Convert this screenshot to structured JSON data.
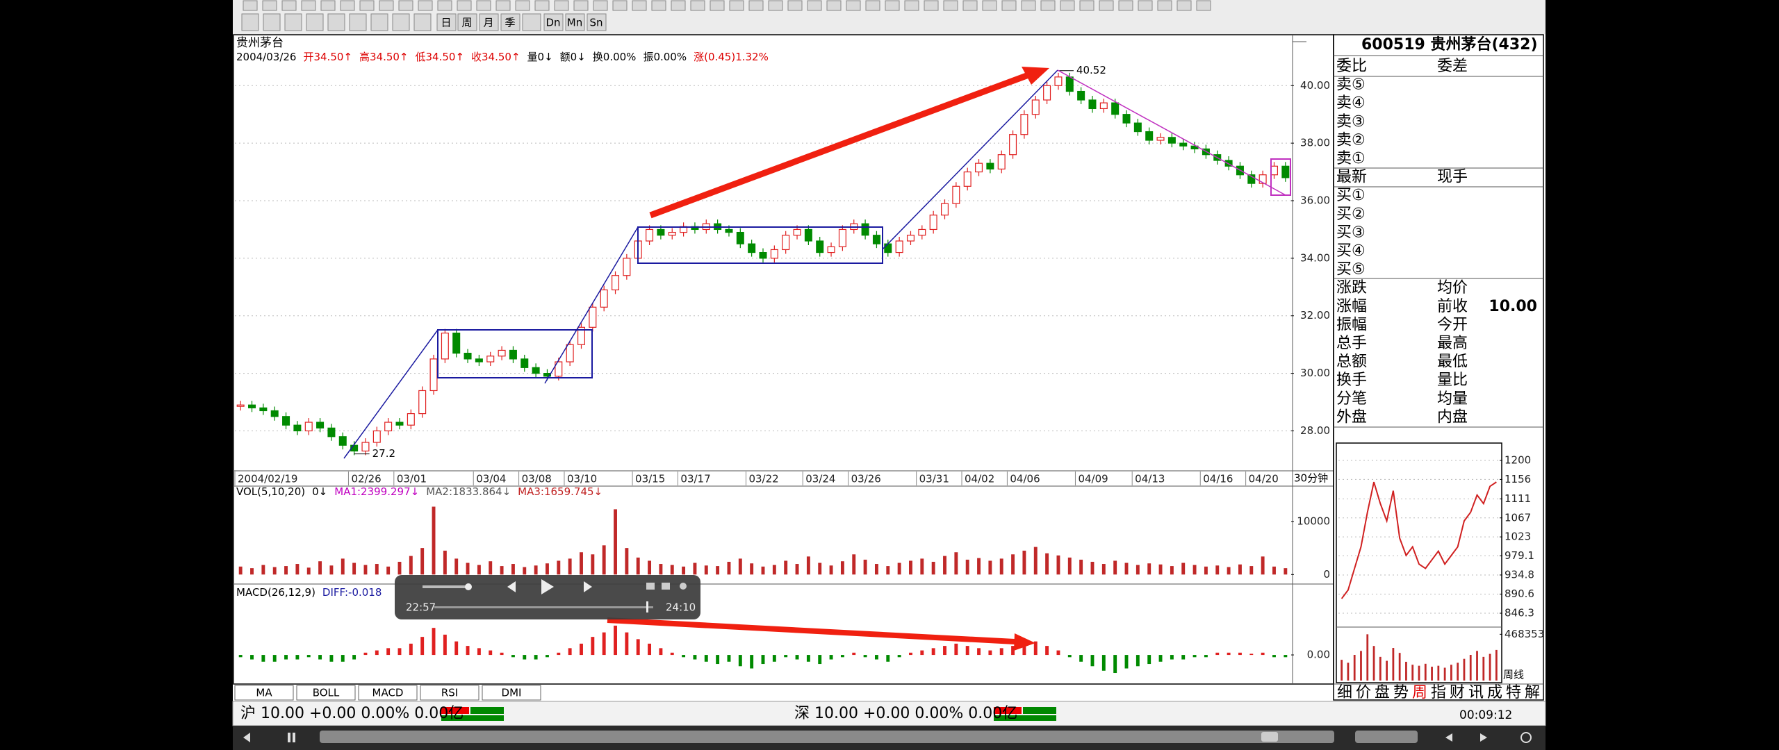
{
  "chart_data": [
    {
      "type": "candle",
      "title": "贵州茅台",
      "subtitle": "2004/03/26",
      "info": [
        "开34.50↑",
        "高34.50↑",
        "低34.50↑",
        "收34.50↑",
        "量0↓",
        "额0↓",
        "换0.00%",
        "振0.00%",
        "涨(0.45)1.32%"
      ],
      "x_unit": "30分钟",
      "categories": [
        "2004/02/19",
        null,
        null,
        null,
        null,
        null,
        null,
        null,
        null,
        null,
        "02/26",
        null,
        null,
        null,
        "03/01",
        null,
        null,
        null,
        null,
        null,
        null,
        "03/04",
        null,
        null,
        null,
        "03/08",
        null,
        null,
        null,
        "03/10",
        null,
        null,
        null,
        null,
        null,
        "03/15",
        null,
        null,
        null,
        "03/17",
        null,
        null,
        null,
        null,
        null,
        "03/22",
        null,
        null,
        null,
        null,
        "03/24",
        null,
        null,
        null,
        "03/26",
        null,
        null,
        null,
        null,
        null,
        "03/31",
        null,
        null,
        null,
        "04/02",
        null,
        null,
        null,
        "04/06",
        null,
        null,
        null,
        null,
        null,
        "04/09",
        null,
        null,
        null,
        null,
        "04/13",
        null,
        null,
        null,
        null,
        null,
        "04/16",
        null,
        null,
        null,
        "04/20",
        null,
        null,
        null
      ],
      "values": [
        28.9,
        28.8,
        28.7,
        28.5,
        28.2,
        28.0,
        28.3,
        28.1,
        27.8,
        27.5,
        27.3,
        27.6,
        28.0,
        28.3,
        28.2,
        28.6,
        29.4,
        30.5,
        31.4,
        30.7,
        30.5,
        30.4,
        30.6,
        30.8,
        30.5,
        30.2,
        30.0,
        29.9,
        30.4,
        31.0,
        31.6,
        32.3,
        32.9,
        33.4,
        34.0,
        34.6,
        35.0,
        34.8,
        34.9,
        35.1,
        35.0,
        35.2,
        35.0,
        34.9,
        34.5,
        34.2,
        34.0,
        34.3,
        34.8,
        35.0,
        34.6,
        34.2,
        34.4,
        35.0,
        35.2,
        34.8,
        34.5,
        34.2,
        34.6,
        34.8,
        35.0,
        35.5,
        35.9,
        36.5,
        37.0,
        37.3,
        37.1,
        37.6,
        38.3,
        39.0,
        39.5,
        40.0,
        40.3,
        39.8,
        39.5,
        39.2,
        39.4,
        39.0,
        38.7,
        38.4,
        38.1,
        38.2,
        38.0,
        37.9,
        37.8,
        37.6,
        37.4,
        37.2,
        36.9,
        36.6,
        36.9,
        37.2,
        36.8
      ],
      "high": 40.52,
      "low": 27.2,
      "up_color": "#e02020",
      "down_color": "#008a00",
      "ylim": [
        26.66,
        41.72
      ],
      "yticks": [
        {
          "value": 28,
          "label": "28.00"
        },
        {
          "value": 30,
          "label": "30.00"
        },
        {
          "value": 32,
          "label": "32.00"
        },
        {
          "value": 34,
          "label": "34.00"
        },
        {
          "value": 36,
          "label": "36.00"
        },
        {
          "value": 38,
          "label": "38.00"
        },
        {
          "value": 40,
          "label": "40.00"
        }
      ],
      "grid": true
    },
    {
      "type": "bar",
      "title": "VOL(5,10,20)",
      "legend": [
        "0↓",
        "MA1:2399.297↓",
        "MA2:1833.864↓",
        "MA3:1659.745↓"
      ],
      "values": [
        1500,
        1200,
        1800,
        1400,
        1600,
        2000,
        1300,
        2500,
        1700,
        3000,
        2200,
        1800,
        2000,
        1500,
        2400,
        3500,
        5000,
        12800,
        4500,
        3000,
        2200,
        1800,
        2500,
        1600,
        2000,
        1400,
        1700,
        2100,
        2600,
        3000,
        4200,
        3800,
        5500,
        12300,
        5000,
        3200,
        2600,
        2000,
        1800,
        1500,
        2200,
        1700,
        1600,
        2400,
        3000,
        2100,
        1500,
        1800,
        2600,
        2000,
        3400,
        2200,
        1700,
        2500,
        3800,
        2800,
        2000,
        1600,
        2200,
        2600,
        3000,
        2400,
        3500,
        4200,
        2800,
        3100,
        2600,
        3000,
        3800,
        4500,
        5200,
        4000,
        3600,
        3200,
        2800,
        2400,
        2000,
        2600,
        2200,
        1800,
        2100,
        1900,
        1600,
        2200,
        1800,
        1500,
        1700,
        1400,
        1900,
        1600,
        3400,
        1500,
        1200
      ],
      "color": "#c02828",
      "ylim": [
        -1400,
        15100
      ],
      "yticks": [
        0,
        10000
      ],
      "grid": false
    },
    {
      "type": "bar",
      "title": "MACD(26,12,9)",
      "legend": [
        "DIFF:-0.018"
      ],
      "values": [
        -0.1,
        -0.2,
        -0.3,
        -0.3,
        -0.2,
        -0.2,
        -0.1,
        -0.2,
        -0.3,
        -0.3,
        -0.2,
        0.1,
        0.2,
        0.3,
        0.3,
        0.5,
        0.8,
        1.2,
        0.9,
        0.6,
        0.4,
        0.3,
        0.2,
        0.1,
        -0.1,
        -0.2,
        -0.2,
        -0.1,
        0.1,
        0.3,
        0.5,
        0.8,
        1.0,
        1.3,
        1.0,
        0.7,
        0.5,
        0.3,
        0.1,
        -0.1,
        -0.2,
        -0.3,
        -0.4,
        -0.3,
        -0.5,
        -0.6,
        -0.4,
        -0.3,
        -0.1,
        -0.2,
        -0.3,
        -0.4,
        -0.2,
        -0.1,
        0.1,
        -0.1,
        -0.2,
        -0.3,
        -0.1,
        0.1,
        0.2,
        0.3,
        0.4,
        0.5,
        0.4,
        0.3,
        0.2,
        0.3,
        0.4,
        0.5,
        0.6,
        0.4,
        0.2,
        -0.1,
        -0.3,
        -0.5,
        -0.7,
        -0.8,
        -0.6,
        -0.5,
        -0.4,
        -0.3,
        -0.2,
        -0.2,
        -0.1,
        -0.1,
        0.1,
        0.1,
        0.1,
        0.05,
        0.1,
        -0.1,
        -0.1
      ],
      "up_color": "#e02020",
      "down_color": "#008a00",
      "ylim": [
        -1.2,
        2.5
      ],
      "yticks": [
        {
          "value": 0,
          "label": "0.00"
        }
      ],
      "grid": false
    },
    {
      "type": "line",
      "caption": "周线",
      "values": [
        880,
        900,
        950,
        1000,
        1080,
        1150,
        1100,
        1060,
        1130,
        1020,
        980,
        1000,
        960,
        950,
        970,
        990,
        960,
        980,
        1000,
        1060,
        1080,
        1120,
        1100,
        1140,
        1150
      ],
      "color": "#d02020",
      "ylim": [
        819,
        1229
      ],
      "yticks": [
        1200,
        1156,
        1111,
        1067,
        1023,
        979.1,
        934.8,
        890.6,
        846.3
      ],
      "grid": true
    },
    {
      "type": "bar",
      "values": [
        210000,
        180000,
        260000,
        300000,
        468353,
        350000,
        240000,
        200000,
        330000,
        280000,
        190000,
        160000,
        150000,
        170000,
        140000,
        150000,
        130000,
        160000,
        180000,
        220000,
        260000,
        300000,
        240000,
        270000,
        310000
      ],
      "color": "#c02828",
      "ylim": [
        0,
        520000
      ],
      "yticks": [
        468353
      ],
      "grid": false
    }
  ],
  "toolbar": {
    "buttons": [
      "日",
      "周",
      "月",
      "季",
      "Dn",
      "Mn",
      "Sn"
    ]
  },
  "quote_panel": {
    "title": "600519 贵州茅台(432)",
    "rows": [
      [
        "委比",
        "委差"
      ],
      [
        "卖⑤"
      ],
      [
        "卖④"
      ],
      [
        "卖③"
      ],
      [
        "卖②"
      ],
      [
        "卖①"
      ],
      [
        "最新",
        "现手"
      ],
      [
        "买①"
      ],
      [
        "买②"
      ],
      [
        "买③"
      ],
      [
        "买④"
      ],
      [
        "买⑤"
      ],
      [
        "涨跌",
        "均价"
      ],
      [
        "涨幅",
        "前收",
        "10.00"
      ],
      [
        "振幅",
        "今开"
      ],
      [
        "总手",
        "最高"
      ],
      [
        "总额",
        "最低"
      ],
      [
        "换手",
        "量比"
      ],
      [
        "分笔",
        "均量"
      ],
      [
        "外盘",
        "内盘"
      ]
    ]
  },
  "info_tabs": [
    "细",
    "价",
    "盘",
    "势",
    "周",
    "指",
    "财",
    "讯",
    "成",
    "特",
    "解"
  ],
  "indicator_tabs": [
    "MA",
    "BOLL",
    "MACD",
    "RSI",
    "DMI"
  ],
  "status_bar": {
    "sh": "沪 10.00 +0.00 0.00% 0.00亿",
    "sz": "深 10.00 +0.00 0.00% 0.00亿",
    "time": "00:09:12"
  },
  "video_player": {
    "elapsed": "22:57",
    "duration": "24:10"
  }
}
